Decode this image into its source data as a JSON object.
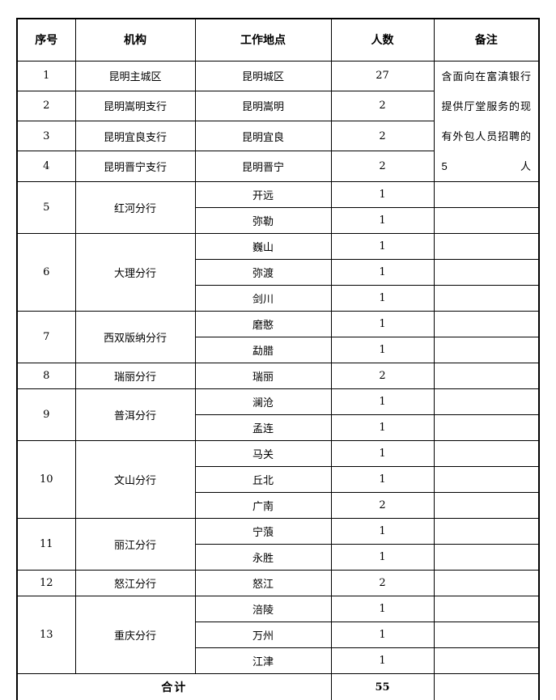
{
  "table": {
    "headers": [
      "序号",
      "机构",
      "工作地点",
      "人数",
      "备注"
    ],
    "groups": [
      {
        "no": "1",
        "org": "昆明主城区",
        "locations": [
          {
            "place": "昆明城区",
            "count": "27"
          }
        ]
      },
      {
        "no": "2",
        "org": "昆明嵩明支行",
        "locations": [
          {
            "place": "昆明嵩明",
            "count": "2"
          }
        ]
      },
      {
        "no": "3",
        "org": "昆明宜良支行",
        "locations": [
          {
            "place": "昆明宜良",
            "count": "2"
          }
        ]
      },
      {
        "no": "4",
        "org": "昆明晋宁支行",
        "locations": [
          {
            "place": "昆明晋宁",
            "count": "2"
          }
        ]
      },
      {
        "no": "5",
        "org": "红河分行",
        "locations": [
          {
            "place": "开远",
            "count": "1"
          },
          {
            "place": "弥勒",
            "count": "1"
          }
        ]
      },
      {
        "no": "6",
        "org": "大理分行",
        "locations": [
          {
            "place": "巍山",
            "count": "1"
          },
          {
            "place": "弥渡",
            "count": "1"
          },
          {
            "place": "剑川",
            "count": "1"
          }
        ]
      },
      {
        "no": "7",
        "org": "西双版纳分行",
        "locations": [
          {
            "place": "磨憨",
            "count": "1"
          },
          {
            "place": "勐腊",
            "count": "1"
          }
        ]
      },
      {
        "no": "8",
        "org": "瑞丽分行",
        "locations": [
          {
            "place": "瑞丽",
            "count": "2"
          }
        ]
      },
      {
        "no": "9",
        "org": "普洱分行",
        "locations": [
          {
            "place": "澜沧",
            "count": "1"
          },
          {
            "place": "孟连",
            "count": "1"
          }
        ]
      },
      {
        "no": "10",
        "org": "文山分行",
        "locations": [
          {
            "place": "马关",
            "count": "1"
          },
          {
            "place": "丘北",
            "count": "1"
          },
          {
            "place": "广南",
            "count": "2"
          }
        ]
      },
      {
        "no": "11",
        "org": "丽江分行",
        "locations": [
          {
            "place": "宁蒗",
            "count": "1"
          },
          {
            "place": "永胜",
            "count": "1"
          }
        ]
      },
      {
        "no": "12",
        "org": "怒江分行",
        "locations": [
          {
            "place": "怒江",
            "count": "2"
          }
        ]
      },
      {
        "no": "13",
        "org": "重庆分行",
        "locations": [
          {
            "place": "涪陵",
            "count": "1"
          },
          {
            "place": "万州",
            "count": "1"
          },
          {
            "place": "江津",
            "count": "1"
          }
        ]
      }
    ],
    "remark_rows_1_4": "含面向在富滇银行提供厅堂服务的现有外包人员招聘的 5 人",
    "remark_span_rows": 4,
    "total_label": "合计",
    "total_count": "55",
    "border_color": "#000000"
  }
}
